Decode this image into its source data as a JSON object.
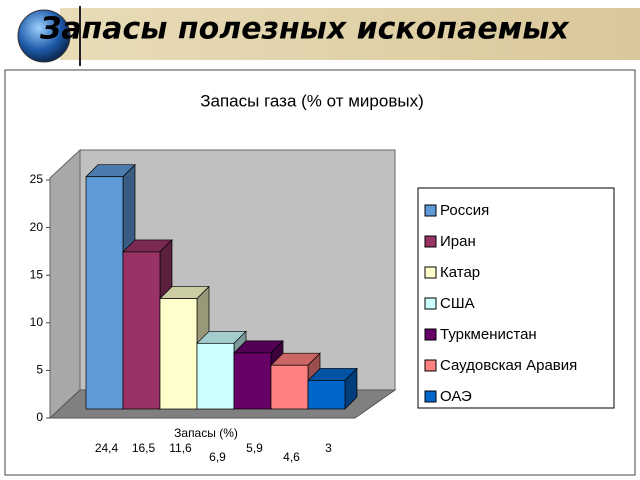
{
  "slide_title": "Запасы полезных ископаемых",
  "chart_data": {
    "type": "bar",
    "title": "Запасы газа (% от мировых)",
    "categories": [
      "Запасы (%)"
    ],
    "series": [
      {
        "name": "Россия",
        "color": "#5f9ad8",
        "values": [
          24.4
        ],
        "value_labels": [
          "24,4"
        ]
      },
      {
        "name": "Иран",
        "color": "#993366",
        "values": [
          16.5
        ],
        "value_labels": [
          "16,5"
        ]
      },
      {
        "name": "Катар",
        "color": "#ffffcc",
        "values": [
          11.6
        ],
        "value_labels": [
          "11,6"
        ]
      },
      {
        "name": "США",
        "color": "#ccffff",
        "values": [
          6.9
        ],
        "value_labels": [
          "6,9"
        ]
      },
      {
        "name": "Туркменистан",
        "color": "#660066",
        "values": [
          5.9
        ],
        "value_labels": [
          "5,9"
        ]
      },
      {
        "name": "Саудовская Аравия",
        "color": "#ff8080",
        "values": [
          4.6
        ],
        "value_labels": [
          "4,6"
        ]
      },
      {
        "name": "ОАЭ",
        "color": "#0066cc",
        "values": [
          3
        ],
        "value_labels": [
          "3"
        ]
      }
    ],
    "ylim": [
      0,
      25
    ],
    "yticks": [
      0,
      5,
      10,
      15,
      20,
      25
    ],
    "grid": false,
    "legend": "right"
  }
}
